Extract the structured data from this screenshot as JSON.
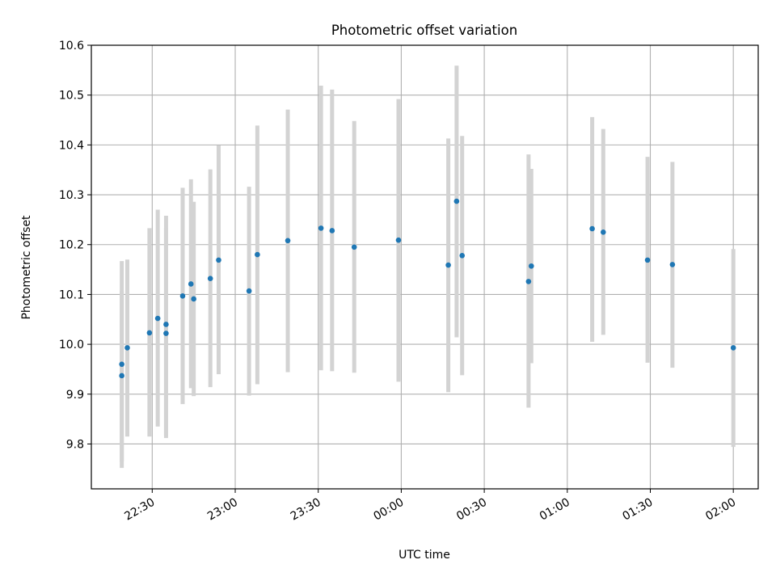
{
  "chart_data": {
    "type": "scatter",
    "title": "Photometric offset variation",
    "xlabel": "UTC time",
    "ylabel": "Photometric offset",
    "xlim": [
      "22:08",
      "02:09"
    ],
    "ylim": [
      9.71,
      10.6
    ],
    "x_ticks": [
      "22:30",
      "23:00",
      "23:30",
      "00:00",
      "00:30",
      "01:00",
      "01:30",
      "02:00"
    ],
    "y_ticks": [
      "9.8",
      "9.9",
      "10.0",
      "10.1",
      "10.2",
      "10.3",
      "10.4",
      "10.5",
      "10.6"
    ],
    "grid": true,
    "colors": {
      "point": "#1f77b4",
      "errorbar": "#d3d3d3",
      "grid": "#b0b0b0"
    },
    "series": [
      {
        "points": [
          {
            "x": "22:19",
            "y": 9.96,
            "ylow": 9.752,
            "yhigh": 10.167
          },
          {
            "x": "22:19",
            "y": 9.937,
            "ylow": 9.765,
            "yhigh": 10.107
          },
          {
            "x": "22:21",
            "y": 9.993,
            "ylow": 9.815,
            "yhigh": 10.17
          },
          {
            "x": "22:29",
            "y": 10.023,
            "ylow": 9.815,
            "yhigh": 10.233
          },
          {
            "x": "22:32",
            "y": 10.052,
            "ylow": 9.835,
            "yhigh": 10.27
          },
          {
            "x": "22:35",
            "y": 10.04,
            "ylow": 9.818,
            "yhigh": 10.258
          },
          {
            "x": "22:35",
            "y": 10.022,
            "ylow": 9.812,
            "yhigh": 10.233
          },
          {
            "x": "22:41",
            "y": 10.097,
            "ylow": 9.88,
            "yhigh": 10.314
          },
          {
            "x": "22:44",
            "y": 10.121,
            "ylow": 9.912,
            "yhigh": 10.331
          },
          {
            "x": "22:45",
            "y": 10.091,
            "ylow": 9.896,
            "yhigh": 10.286
          },
          {
            "x": "22:51",
            "y": 10.132,
            "ylow": 9.914,
            "yhigh": 10.351
          },
          {
            "x": "22:54",
            "y": 10.169,
            "ylow": 9.94,
            "yhigh": 10.399
          },
          {
            "x": "23:05",
            "y": 10.107,
            "ylow": 9.897,
            "yhigh": 10.316
          },
          {
            "x": "23:08",
            "y": 10.18,
            "ylow": 9.92,
            "yhigh": 10.439
          },
          {
            "x": "23:19",
            "y": 10.208,
            "ylow": 9.944,
            "yhigh": 10.471
          },
          {
            "x": "23:31",
            "y": 10.233,
            "ylow": 9.948,
            "yhigh": 10.519
          },
          {
            "x": "23:35",
            "y": 10.228,
            "ylow": 9.946,
            "yhigh": 10.511
          },
          {
            "x": "23:43",
            "y": 10.195,
            "ylow": 9.943,
            "yhigh": 10.448
          },
          {
            "x": "23:59",
            "y": 10.209,
            "ylow": 9.925,
            "yhigh": 10.492
          },
          {
            "x": "00:17",
            "y": 10.159,
            "ylow": 9.904,
            "yhigh": 10.413
          },
          {
            "x": "00:20",
            "y": 10.287,
            "ylow": 10.014,
            "yhigh": 10.559
          },
          {
            "x": "00:22",
            "y": 10.178,
            "ylow": 9.938,
            "yhigh": 10.418
          },
          {
            "x": "00:46",
            "y": 10.126,
            "ylow": 9.873,
            "yhigh": 10.381
          },
          {
            "x": "00:47",
            "y": 10.157,
            "ylow": 9.962,
            "yhigh": 10.352
          },
          {
            "x": "01:09",
            "y": 10.232,
            "ylow": 10.005,
            "yhigh": 10.456
          },
          {
            "x": "01:13",
            "y": 10.225,
            "ylow": 10.019,
            "yhigh": 10.432
          },
          {
            "x": "01:29",
            "y": 10.169,
            "ylow": 9.963,
            "yhigh": 10.376
          },
          {
            "x": "01:38",
            "y": 10.16,
            "ylow": 9.953,
            "yhigh": 10.366
          },
          {
            "x": "02:00",
            "y": 9.993,
            "ylow": 9.794,
            "yhigh": 10.191
          }
        ]
      }
    ]
  }
}
